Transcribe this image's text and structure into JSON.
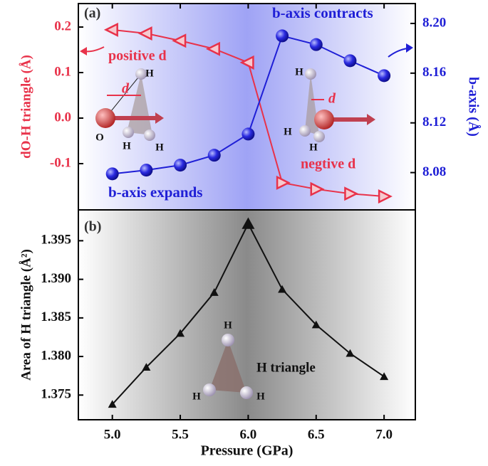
{
  "chart_data": [
    {
      "type": "line",
      "ylabel": "dO-H triangle (Å)",
      "y2label": "b-axis (Å)",
      "x": [
        5.0,
        5.25,
        5.5,
        5.75,
        6.0,
        6.25,
        6.5,
        6.75,
        7.0
      ],
      "xlim": [
        4.75,
        7.23
      ],
      "ylim": [
        -0.2016,
        0.2516
      ],
      "yticks": [
        -0.1,
        {
          "value": 0.0,
          "label": "0.0"
        },
        0.1,
        0.2
      ],
      "y2lim": [
        8.05,
        8.216
      ],
      "y2ticks": [
        8.08,
        8.12,
        8.16,
        {
          "value": 8.2,
          "label": "8.20"
        }
      ],
      "series": [
        {
          "color": "#e8324a",
          "values": [
            0.194,
            0.186,
            0.17,
            0.152,
            0.122,
            -0.142,
            -0.156,
            -0.166,
            -0.172
          ]
        },
        {
          "color": "#1f1fd6",
          "axis": "y2",
          "values": [
            8.079,
            8.082,
            8.086,
            8.094,
            8.111,
            8.19,
            8.183,
            8.17,
            8.158
          ]
        }
      ],
      "annotations": [
        "(a)",
        "positive d",
        "negtive d",
        "b-axis contracts",
        "b-axis expands"
      ],
      "inset_left": [
        "H",
        "d",
        "O",
        "H",
        "H"
      ],
      "inset_right": [
        "H",
        "d",
        "H",
        "H"
      ]
    },
    {
      "type": "line",
      "ylabel": "Area of H triangle (Å²)",
      "xlabel": "Pressure (GPa)",
      "x": [
        5.0,
        5.25,
        5.5,
        5.75,
        6.0,
        6.25,
        6.5,
        6.75,
        7.0
      ],
      "xlim": [
        4.75,
        7.23
      ],
      "xticks": [
        {
          "value": 5.0,
          "label": "5.0"
        },
        5.5,
        {
          "value": 6.0,
          "label": "6.0"
        },
        6.5,
        {
          "value": 7.0,
          "label": "7.0"
        }
      ],
      "ylim": [
        1.3718,
        1.399
      ],
      "yticks": [
        1.375,
        {
          "value": 1.38,
          "label": "1.380"
        },
        1.385,
        {
          "value": 1.39,
          "label": "1.390"
        },
        1.395
      ],
      "series": [
        {
          "color": "#111111",
          "values": [
            1.3738,
            1.3786,
            1.383,
            1.3883,
            1.3972,
            1.3887,
            1.3841,
            1.3804,
            1.3774
          ]
        }
      ],
      "annotations": [
        "(b)",
        "H triangle"
      ],
      "inset": [
        "H",
        "H",
        "H"
      ]
    }
  ]
}
